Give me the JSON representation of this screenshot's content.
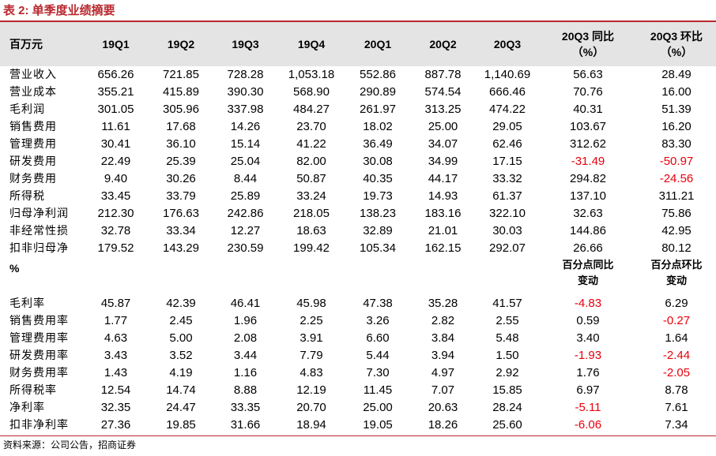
{
  "title": "表 2:  单季度业绩摘要",
  "header": {
    "unit": "百万元",
    "columns": [
      "19Q1",
      "19Q2",
      "19Q3",
      "19Q4",
      "20Q1",
      "20Q2",
      "20Q3"
    ],
    "yoy_line1": "20Q3 同比",
    "yoy_line2": "（%）",
    "qoq_line1": "20Q3 环比",
    "qoq_line2": "（%）"
  },
  "rows": [
    {
      "label": "营业收入",
      "values": [
        "656.26",
        "721.85",
        "728.28",
        "1,053.18",
        "552.86",
        "887.78",
        "1,140.69",
        "56.63",
        "28.49"
      ]
    },
    {
      "label": "营业成本",
      "values": [
        "355.21",
        "415.89",
        "390.30",
        "568.90",
        "290.89",
        "574.54",
        "666.46",
        "70.76",
        "16.00"
      ]
    },
    {
      "label": "毛利润",
      "values": [
        "301.05",
        "305.96",
        "337.98",
        "484.27",
        "261.97",
        "313.25",
        "474.22",
        "40.31",
        "51.39"
      ]
    },
    {
      "label": "销售费用",
      "values": [
        "11.61",
        "17.68",
        "14.26",
        "23.70",
        "18.02",
        "25.00",
        "29.05",
        "103.67",
        "16.20"
      ]
    },
    {
      "label": "管理费用",
      "values": [
        "30.41",
        "36.10",
        "15.14",
        "41.22",
        "36.49",
        "34.07",
        "62.46",
        "312.62",
        "83.30"
      ]
    },
    {
      "label": "研发费用",
      "values": [
        "22.49",
        "25.39",
        "25.04",
        "82.00",
        "30.08",
        "34.99",
        "17.15",
        "-31.49",
        "-50.97"
      ]
    },
    {
      "label": "财务费用",
      "values": [
        "9.40",
        "30.26",
        "8.44",
        "50.87",
        "40.35",
        "44.17",
        "33.32",
        "294.82",
        "-24.56"
      ]
    },
    {
      "label": "所得税",
      "values": [
        "33.45",
        "33.79",
        "25.89",
        "33.24",
        "19.73",
        "14.93",
        "61.37",
        "137.10",
        "311.21"
      ]
    },
    {
      "label": "归母净利润",
      "values": [
        "212.30",
        "176.63",
        "242.86",
        "218.05",
        "138.23",
        "183.16",
        "322.10",
        "32.63",
        "75.86"
      ]
    },
    {
      "label": "非经常性损",
      "values": [
        "32.78",
        "33.34",
        "12.27",
        "18.63",
        "32.89",
        "21.01",
        "30.03",
        "144.86",
        "42.95"
      ]
    },
    {
      "label": "扣非归母净",
      "values": [
        "179.52",
        "143.29",
        "230.59",
        "199.42",
        "105.34",
        "162.15",
        "292.07",
        "26.66",
        "80.12"
      ]
    }
  ],
  "ratio_header": {
    "unit": "%",
    "yoy_line1": "百分点同比",
    "yoy_line2": "变动",
    "qoq_line1": "百分点环比",
    "qoq_line2": "变动"
  },
  "ratio_rows": [
    {
      "label": "毛利率",
      "values": [
        "45.87",
        "42.39",
        "46.41",
        "45.98",
        "47.38",
        "35.28",
        "41.57",
        "-4.83",
        "6.29"
      ]
    },
    {
      "label": "销售费用率",
      "values": [
        "1.77",
        "2.45",
        "1.96",
        "2.25",
        "3.26",
        "2.82",
        "2.55",
        "0.59",
        "-0.27"
      ]
    },
    {
      "label": "管理费用率",
      "values": [
        "4.63",
        "5.00",
        "2.08",
        "3.91",
        "6.60",
        "3.84",
        "5.48",
        "3.40",
        "1.64"
      ]
    },
    {
      "label": "研发费用率",
      "values": [
        "3.43",
        "3.52",
        "3.44",
        "7.79",
        "5.44",
        "3.94",
        "1.50",
        "-1.93",
        "-2.44"
      ]
    },
    {
      "label": "财务费用率",
      "values": [
        "1.43",
        "4.19",
        "1.16",
        "4.83",
        "7.30",
        "4.97",
        "2.92",
        "1.76",
        "-2.05"
      ]
    },
    {
      "label": "所得税率",
      "values": [
        "12.54",
        "14.74",
        "8.88",
        "12.19",
        "11.45",
        "7.07",
        "15.85",
        "6.97",
        "8.78"
      ]
    },
    {
      "label": "净利率",
      "values": [
        "32.35",
        "24.47",
        "33.35",
        "20.70",
        "25.00",
        "20.63",
        "28.24",
        "-5.11",
        "7.61"
      ]
    },
    {
      "label": "扣非净利率",
      "values": [
        "27.36",
        "19.85",
        "31.66",
        "18.94",
        "19.05",
        "18.26",
        "25.60",
        "-6.06",
        "7.34"
      ]
    }
  ],
  "negative_color": "#e8000b",
  "accent_color": "#b8282e",
  "source": "资料来源：公司公告，招商证券"
}
